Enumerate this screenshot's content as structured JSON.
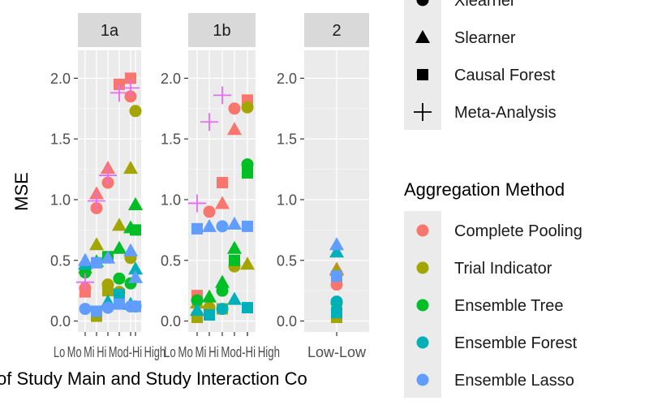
{
  "chart_data": {
    "type": "scatter",
    "xlabel": "of Study Main and Study Interaction Co",
    "ylabel": "MSE",
    "ylim": [
      -0.09,
      2.23
    ],
    "yticks": [
      "0.0",
      "0.5",
      "1.0",
      "1.5",
      "2.0"
    ],
    "ytick_values": [
      0.0,
      0.5,
      1.0,
      1.5,
      2.0
    ],
    "grid": true,
    "legend_position": "right",
    "colors": {
      "Complete Pooling": "#F8766D",
      "Trial Indicator": "#A3A500",
      "Ensemble Tree": "#00BF26",
      "Ensemble Forest": "#00B0B8",
      "Ensemble Lasso": "#619CFF",
      "Meta-Analysis": "#E76BF3"
    },
    "panels": [
      {
        "strip": "1a",
        "categories": [
          "Low-Low",
          "Moderate",
          "Mixed",
          "High",
          "Moderate-High",
          "High-High"
        ],
        "xtick_text": "Lo Mo Mi Hi Mod-Hi High",
        "points": [
          {
            "c": 0,
            "v": 0.27,
            "m": "Complete Pooling",
            "s": "circle"
          },
          {
            "c": 0,
            "v": 0.24,
            "m": "Complete Pooling",
            "s": "square"
          },
          {
            "c": 0,
            "v": 0.44,
            "m": "Trial Indicator",
            "s": "triangle"
          },
          {
            "c": 0,
            "v": 0.4,
            "m": "Ensemble Tree",
            "s": "circle"
          },
          {
            "c": 0,
            "v": 0.47,
            "m": "Ensemble Forest",
            "s": "triangle"
          },
          {
            "c": 0,
            "v": 0.1,
            "m": "Ensemble Lasso",
            "s": "circle"
          },
          {
            "c": 0,
            "v": 0.5,
            "m": "Ensemble Lasso",
            "s": "triangle"
          },
          {
            "c": 0,
            "v": 0.32,
            "m": "Meta-Analysis",
            "s": "cross"
          },
          {
            "c": 1,
            "v": 0.93,
            "m": "Complete Pooling",
            "s": "circle"
          },
          {
            "c": 1,
            "v": 1.05,
            "m": "Complete Pooling",
            "s": "triangle"
          },
          {
            "c": 1,
            "v": 0.63,
            "m": "Trial Indicator",
            "s": "triangle"
          },
          {
            "c": 1,
            "v": 0.04,
            "m": "Trial Indicator",
            "s": "square"
          },
          {
            "c": 1,
            "v": 0.49,
            "m": "Ensemble Tree",
            "s": "triangle"
          },
          {
            "c": 1,
            "v": 0.08,
            "m": "Ensemble Forest",
            "s": "square"
          },
          {
            "c": 1,
            "v": 0.08,
            "m": "Ensemble Lasso",
            "s": "square"
          },
          {
            "c": 1,
            "v": 0.48,
            "m": "Ensemble Lasso",
            "s": "square"
          },
          {
            "c": 1,
            "v": 0.99,
            "m": "Meta-Analysis",
            "s": "cross"
          },
          {
            "c": 2,
            "v": 1.14,
            "m": "Complete Pooling",
            "s": "circle"
          },
          {
            "c": 2,
            "v": 1.26,
            "m": "Complete Pooling",
            "s": "triangle"
          },
          {
            "c": 2,
            "v": 0.3,
            "m": "Trial Indicator",
            "s": "circle"
          },
          {
            "c": 2,
            "v": 0.25,
            "m": "Trial Indicator",
            "s": "square"
          },
          {
            "c": 2,
            "v": 0.53,
            "m": "Ensemble Tree",
            "s": "square"
          },
          {
            "c": 2,
            "v": 0.16,
            "m": "Ensemble Forest",
            "s": "triangle"
          },
          {
            "c": 2,
            "v": 0.11,
            "m": "Ensemble Lasso",
            "s": "circle"
          },
          {
            "c": 2,
            "v": 0.52,
            "m": "Ensemble Lasso",
            "s": "triangle"
          },
          {
            "c": 2,
            "v": 1.2,
            "m": "Meta-Analysis",
            "s": "cross"
          },
          {
            "c": 3,
            "v": 1.95,
            "m": "Complete Pooling",
            "s": "square"
          },
          {
            "c": 3,
            "v": 0.79,
            "m": "Trial Indicator",
            "s": "triangle"
          },
          {
            "c": 3,
            "v": 0.24,
            "m": "Trial Indicator",
            "s": "circle"
          },
          {
            "c": 3,
            "v": 0.6,
            "m": "Ensemble Tree",
            "s": "triangle"
          },
          {
            "c": 3,
            "v": 0.35,
            "m": "Ensemble Tree",
            "s": "circle"
          },
          {
            "c": 3,
            "v": 0.22,
            "m": "Ensemble Forest",
            "s": "square"
          },
          {
            "c": 3,
            "v": 0.14,
            "m": "Ensemble Lasso",
            "s": "square"
          },
          {
            "c": 3,
            "v": 1.88,
            "m": "Meta-Analysis",
            "s": "cross"
          },
          {
            "c": 4,
            "v": 1.85,
            "m": "Complete Pooling",
            "s": "circle"
          },
          {
            "c": 4,
            "v": 2.0,
            "m": "Complete Pooling",
            "s": "square"
          },
          {
            "c": 4,
            "v": 1.26,
            "m": "Trial Indicator",
            "s": "triangle"
          },
          {
            "c": 4,
            "v": 0.52,
            "m": "Trial Indicator",
            "s": "circle"
          },
          {
            "c": 4,
            "v": 0.77,
            "m": "Ensemble Tree",
            "s": "triangle"
          },
          {
            "c": 4,
            "v": 0.31,
            "m": "Ensemble Tree",
            "s": "circle"
          },
          {
            "c": 4,
            "v": 0.14,
            "m": "Ensemble Forest",
            "s": "triangle"
          },
          {
            "c": 4,
            "v": 0.12,
            "m": "Ensemble Lasso",
            "s": "circle"
          },
          {
            "c": 4,
            "v": 0.58,
            "m": "Ensemble Lasso",
            "s": "triangle"
          },
          {
            "c": 4,
            "v": 1.92,
            "m": "Meta-Analysis",
            "s": "cross"
          },
          {
            "c": 5,
            "v": 1.73,
            "m": "Trial Indicator",
            "s": "circle"
          },
          {
            "c": 5,
            "v": 0.96,
            "m": "Trial Indicator",
            "s": "triangle"
          },
          {
            "c": 5,
            "v": 0.96,
            "m": "Ensemble Tree",
            "s": "triangle"
          },
          {
            "c": 5,
            "v": 0.75,
            "m": "Ensemble Tree",
            "s": "square"
          },
          {
            "c": 5,
            "v": 0.43,
            "m": "Ensemble Forest",
            "s": "triangle"
          },
          {
            "c": 5,
            "v": 0.12,
            "m": "Ensemble Forest",
            "s": "circle"
          },
          {
            "c": 5,
            "v": 0.36,
            "m": "Ensemble Lasso",
            "s": "triangle"
          },
          {
            "c": 5,
            "v": 0.12,
            "m": "Ensemble Lasso",
            "s": "square"
          }
        ]
      },
      {
        "strip": "1b",
        "categories": [
          "Low-Low",
          "Moderate",
          "Mixed",
          "High",
          "Moderate-High",
          "High-High"
        ],
        "xtick_text": "Lo Mo Mi Hi Mod-Hi High",
        "points": [
          {
            "c": 0,
            "v": 0.21,
            "m": "Complete Pooling",
            "s": "square"
          },
          {
            "c": 0,
            "v": 0.15,
            "m": "Trial Indicator",
            "s": "triangle"
          },
          {
            "c": 0,
            "v": 0.03,
            "m": "Trial Indicator",
            "s": "square"
          },
          {
            "c": 0,
            "v": 0.17,
            "m": "Ensemble Tree",
            "s": "circle"
          },
          {
            "c": 0,
            "v": 0.09,
            "m": "Ensemble Forest",
            "s": "triangle"
          },
          {
            "c": 0,
            "v": 0.76,
            "m": "Ensemble Lasso",
            "s": "square"
          },
          {
            "c": 0,
            "v": 0.97,
            "m": "Meta-Analysis",
            "s": "cross"
          },
          {
            "c": 1,
            "v": 0.9,
            "m": "Complete Pooling",
            "s": "circle"
          },
          {
            "c": 1,
            "v": 0.11,
            "m": "Trial Indicator",
            "s": "circle"
          },
          {
            "c": 1,
            "v": 0.2,
            "m": "Ensemble Tree",
            "s": "triangle"
          },
          {
            "c": 1,
            "v": 0.05,
            "m": "Ensemble Forest",
            "s": "square"
          },
          {
            "c": 1,
            "v": 0.78,
            "m": "Ensemble Lasso",
            "s": "triangle"
          },
          {
            "c": 1,
            "v": 1.64,
            "m": "Meta-Analysis",
            "s": "cross"
          },
          {
            "c": 2,
            "v": 1.14,
            "m": "Complete Pooling",
            "s": "square"
          },
          {
            "c": 2,
            "v": 0.97,
            "m": "Complete Pooling",
            "s": "triangle"
          },
          {
            "c": 2,
            "v": 0.1,
            "m": "Trial Indicator",
            "s": "square"
          },
          {
            "c": 2,
            "v": 0.32,
            "m": "Ensemble Tree",
            "s": "triangle"
          },
          {
            "c": 2,
            "v": 0.25,
            "m": "Ensemble Tree",
            "s": "circle"
          },
          {
            "c": 2,
            "v": 0.1,
            "m": "Ensemble Forest",
            "s": "circle"
          },
          {
            "c": 2,
            "v": 0.78,
            "m": "Ensemble Lasso",
            "s": "circle"
          },
          {
            "c": 2,
            "v": 1.86,
            "m": "Meta-Analysis",
            "s": "cross"
          },
          {
            "c": 3,
            "v": 1.75,
            "m": "Complete Pooling",
            "s": "circle"
          },
          {
            "c": 3,
            "v": 1.58,
            "m": "Complete Pooling",
            "s": "triangle"
          },
          {
            "c": 3,
            "v": 0.45,
            "m": "Trial Indicator",
            "s": "circle"
          },
          {
            "c": 3,
            "v": 0.6,
            "m": "Ensemble Tree",
            "s": "triangle"
          },
          {
            "c": 3,
            "v": 0.5,
            "m": "Ensemble Tree",
            "s": "square"
          },
          {
            "c": 3,
            "v": 0.18,
            "m": "Ensemble Forest",
            "s": "triangle"
          },
          {
            "c": 3,
            "v": 0.8,
            "m": "Ensemble Lasso",
            "s": "triangle"
          },
          {
            "c": 4,
            "v": 1.82,
            "m": "Complete Pooling",
            "s": "square"
          },
          {
            "c": 4,
            "v": 1.76,
            "m": "Trial Indicator",
            "s": "circle"
          },
          {
            "c": 4,
            "v": 0.47,
            "m": "Trial Indicator",
            "s": "triangle"
          },
          {
            "c": 4,
            "v": 1.29,
            "m": "Ensemble Tree",
            "s": "circle"
          },
          {
            "c": 4,
            "v": 1.22,
            "m": "Ensemble Tree",
            "s": "square"
          },
          {
            "c": 4,
            "v": 0.11,
            "m": "Ensemble Forest",
            "s": "square"
          },
          {
            "c": 4,
            "v": 0.78,
            "m": "Ensemble Lasso",
            "s": "square"
          }
        ]
      },
      {
        "strip": "2",
        "categories": [
          "Low-Low"
        ],
        "xtick_text": "Low-Low",
        "points": [
          {
            "c": 0,
            "v": 0.3,
            "m": "Complete Pooling",
            "s": "circle"
          },
          {
            "c": 0,
            "v": 0.43,
            "m": "Complete Pooling",
            "s": "triangle"
          },
          {
            "c": 0,
            "v": 0.42,
            "m": "Trial Indicator",
            "s": "triangle"
          },
          {
            "c": 0,
            "v": 0.03,
            "m": "Trial Indicator",
            "s": "square"
          },
          {
            "c": 0,
            "v": 0.15,
            "m": "Ensemble Tree",
            "s": "circle"
          },
          {
            "c": 0,
            "v": 0.16,
            "m": "Ensemble Forest",
            "s": "circle"
          },
          {
            "c": 0,
            "v": 0.57,
            "m": "Ensemble Forest",
            "s": "triangle"
          },
          {
            "c": 0,
            "v": 0.07,
            "m": "Ensemble Forest",
            "s": "square"
          },
          {
            "c": 0,
            "v": 0.37,
            "m": "Ensemble Lasso",
            "s": "square"
          },
          {
            "c": 0,
            "v": 0.63,
            "m": "Ensemble Lasso",
            "s": "triangle"
          }
        ]
      }
    ]
  },
  "legend": {
    "shape_items": [
      {
        "label": "Xlearner",
        "shape": "circle"
      },
      {
        "label": "Slearner",
        "shape": "triangle"
      },
      {
        "label": "Causal Forest",
        "shape": "square"
      },
      {
        "label": "Meta-Analysis",
        "shape": "cross"
      }
    ],
    "color_title": "Aggregation Method",
    "color_items": [
      {
        "label": "Complete Pooling",
        "color": "#F8766D"
      },
      {
        "label": "Trial Indicator",
        "color": "#A3A500"
      },
      {
        "label": "Ensemble Tree",
        "color": "#00BF26"
      },
      {
        "label": "Ensemble Forest",
        "color": "#00B0B8"
      },
      {
        "label": "Ensemble Lasso",
        "color": "#619CFF"
      }
    ]
  }
}
